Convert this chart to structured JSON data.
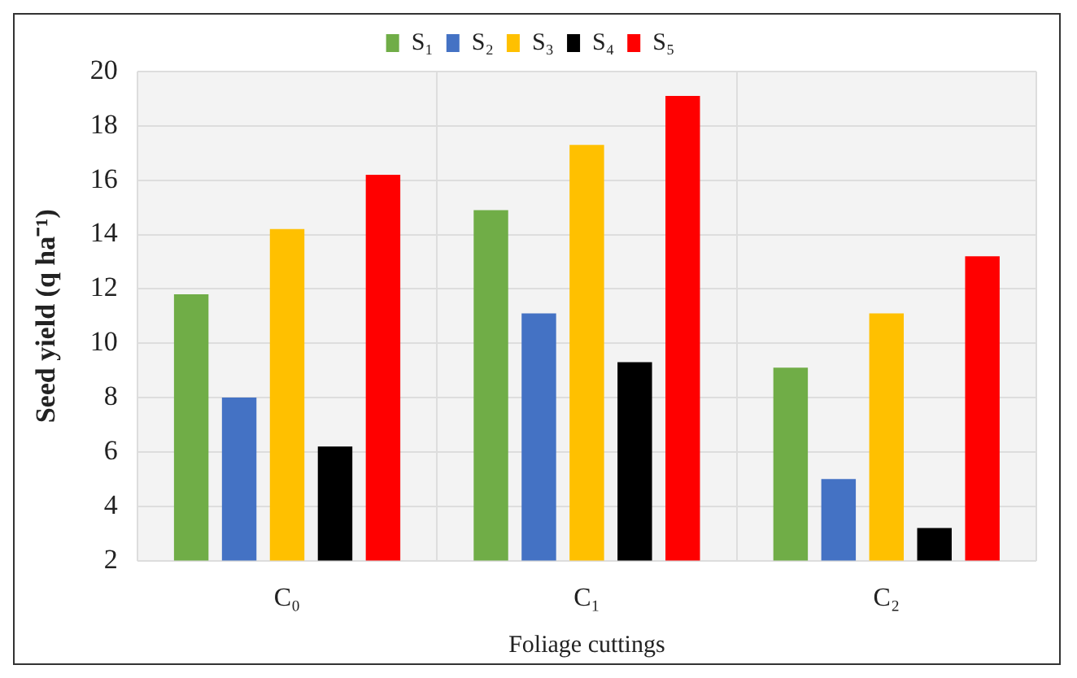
{
  "chart_data": {
    "type": "bar",
    "xlabel": "Foliage cuttings",
    "ylabel": "Seed yield (q ha⁻¹)",
    "categories": [
      "C₀",
      "C₁",
      "C₂"
    ],
    "series": [
      {
        "name": "S₁",
        "color": "#70ad47",
        "values": [
          11.8,
          14.9,
          9.1
        ]
      },
      {
        "name": "S₂",
        "color": "#4472c4",
        "values": [
          8.0,
          11.1,
          5.0
        ]
      },
      {
        "name": "S₃",
        "color": "#ffc000",
        "values": [
          14.2,
          17.3,
          11.1
        ]
      },
      {
        "name": "S₄",
        "color": "#000000",
        "values": [
          6.2,
          9.3,
          3.2
        ]
      },
      {
        "name": "S₅",
        "color": "#ff0000",
        "values": [
          16.2,
          19.1,
          13.2
        ]
      }
    ],
    "ylim": [
      2,
      20
    ],
    "yticks": [
      2,
      4,
      6,
      8,
      10,
      12,
      14,
      16,
      18,
      20
    ],
    "grid": true,
    "legend": "top"
  }
}
